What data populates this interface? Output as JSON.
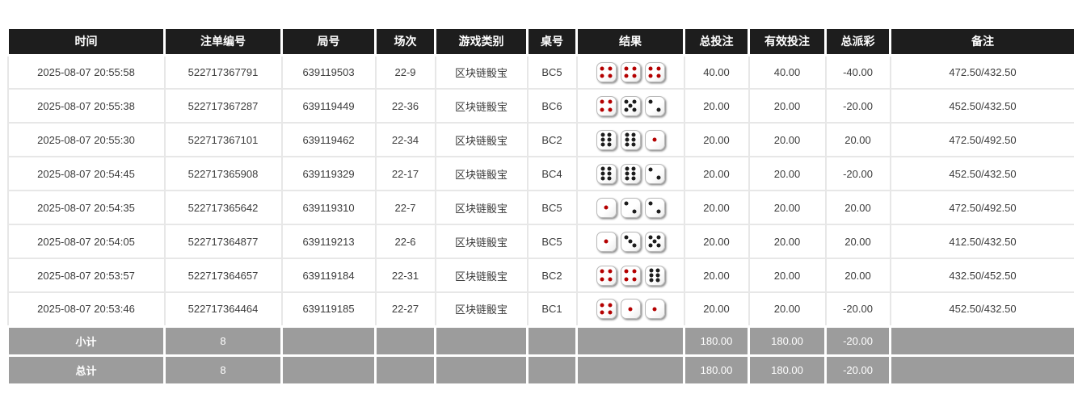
{
  "table": {
    "columns": [
      {
        "key": "time",
        "label": "时间"
      },
      {
        "key": "bet_id",
        "label": "注单编号"
      },
      {
        "key": "round_id",
        "label": "局号"
      },
      {
        "key": "session",
        "label": "场次"
      },
      {
        "key": "game_type",
        "label": "游戏类别"
      },
      {
        "key": "table_id",
        "label": "桌号"
      },
      {
        "key": "result",
        "label": "结果"
      },
      {
        "key": "total_bet",
        "label": "总投注"
      },
      {
        "key": "valid_bet",
        "label": "有效投注"
      },
      {
        "key": "total_payout",
        "label": "总派彩"
      },
      {
        "key": "remark",
        "label": "备注"
      }
    ],
    "rows": [
      {
        "time": "2025-08-07 20:55:58",
        "bet_id": "522717367791",
        "round_id": "639119503",
        "session": "22-9",
        "game_type": "区块链骰宝",
        "table_id": "BC5",
        "dice": [
          4,
          4,
          4
        ],
        "total_bet": "40.00",
        "valid_bet": "40.00",
        "total_payout": "-40.00",
        "remark": "472.50/432.50"
      },
      {
        "time": "2025-08-07 20:55:38",
        "bet_id": "522717367287",
        "round_id": "639119449",
        "session": "22-36",
        "game_type": "区块链骰宝",
        "table_id": "BC6",
        "dice": [
          4,
          5,
          2
        ],
        "total_bet": "20.00",
        "valid_bet": "20.00",
        "total_payout": "-20.00",
        "remark": "452.50/432.50"
      },
      {
        "time": "2025-08-07 20:55:30",
        "bet_id": "522717367101",
        "round_id": "639119462",
        "session": "22-34",
        "game_type": "区块链骰宝",
        "table_id": "BC2",
        "dice": [
          6,
          6,
          1
        ],
        "total_bet": "20.00",
        "valid_bet": "20.00",
        "total_payout": "20.00",
        "remark": "472.50/492.50"
      },
      {
        "time": "2025-08-07 20:54:45",
        "bet_id": "522717365908",
        "round_id": "639119329",
        "session": "22-17",
        "game_type": "区块链骰宝",
        "table_id": "BC4",
        "dice": [
          6,
          6,
          2
        ],
        "total_bet": "20.00",
        "valid_bet": "20.00",
        "total_payout": "-20.00",
        "remark": "452.50/432.50"
      },
      {
        "time": "2025-08-07 20:54:35",
        "bet_id": "522717365642",
        "round_id": "639119310",
        "session": "22-7",
        "game_type": "区块链骰宝",
        "table_id": "BC5",
        "dice": [
          1,
          2,
          2
        ],
        "total_bet": "20.00",
        "valid_bet": "20.00",
        "total_payout": "20.00",
        "remark": "472.50/492.50"
      },
      {
        "time": "2025-08-07 20:54:05",
        "bet_id": "522717364877",
        "round_id": "639119213",
        "session": "22-6",
        "game_type": "区块链骰宝",
        "table_id": "BC5",
        "dice": [
          1,
          3,
          5
        ],
        "total_bet": "20.00",
        "valid_bet": "20.00",
        "total_payout": "20.00",
        "remark": "412.50/432.50"
      },
      {
        "time": "2025-08-07 20:53:57",
        "bet_id": "522717364657",
        "round_id": "639119184",
        "session": "22-31",
        "game_type": "区块链骰宝",
        "table_id": "BC2",
        "dice": [
          4,
          4,
          6
        ],
        "total_bet": "20.00",
        "valid_bet": "20.00",
        "total_payout": "20.00",
        "remark": "432.50/452.50"
      },
      {
        "time": "2025-08-07 20:53:46",
        "bet_id": "522717364464",
        "round_id": "639119185",
        "session": "22-27",
        "game_type": "区块链骰宝",
        "table_id": "BC1",
        "dice": [
          4,
          1,
          1
        ],
        "total_bet": "20.00",
        "valid_bet": "20.00",
        "total_payout": "-20.00",
        "remark": "452.50/432.50"
      }
    ],
    "summary_rows": [
      {
        "label": "小计",
        "count": "8",
        "total_bet": "180.00",
        "valid_bet": "180.00",
        "total_payout": "-20.00"
      },
      {
        "label": "总计",
        "count": "8",
        "total_bet": "180.00",
        "valid_bet": "180.00",
        "total_payout": "-20.00"
      }
    ]
  },
  "colors": {
    "header_bg": "#1d1d1d",
    "row_bg": "#ffffff",
    "summary_bg": "#9c9c9c",
    "accent_blue": "#3a6bd8",
    "negative_red": "#e80000",
    "dice_pip_red": "#b40000",
    "dice_pip_black": "#1c1c1c"
  }
}
